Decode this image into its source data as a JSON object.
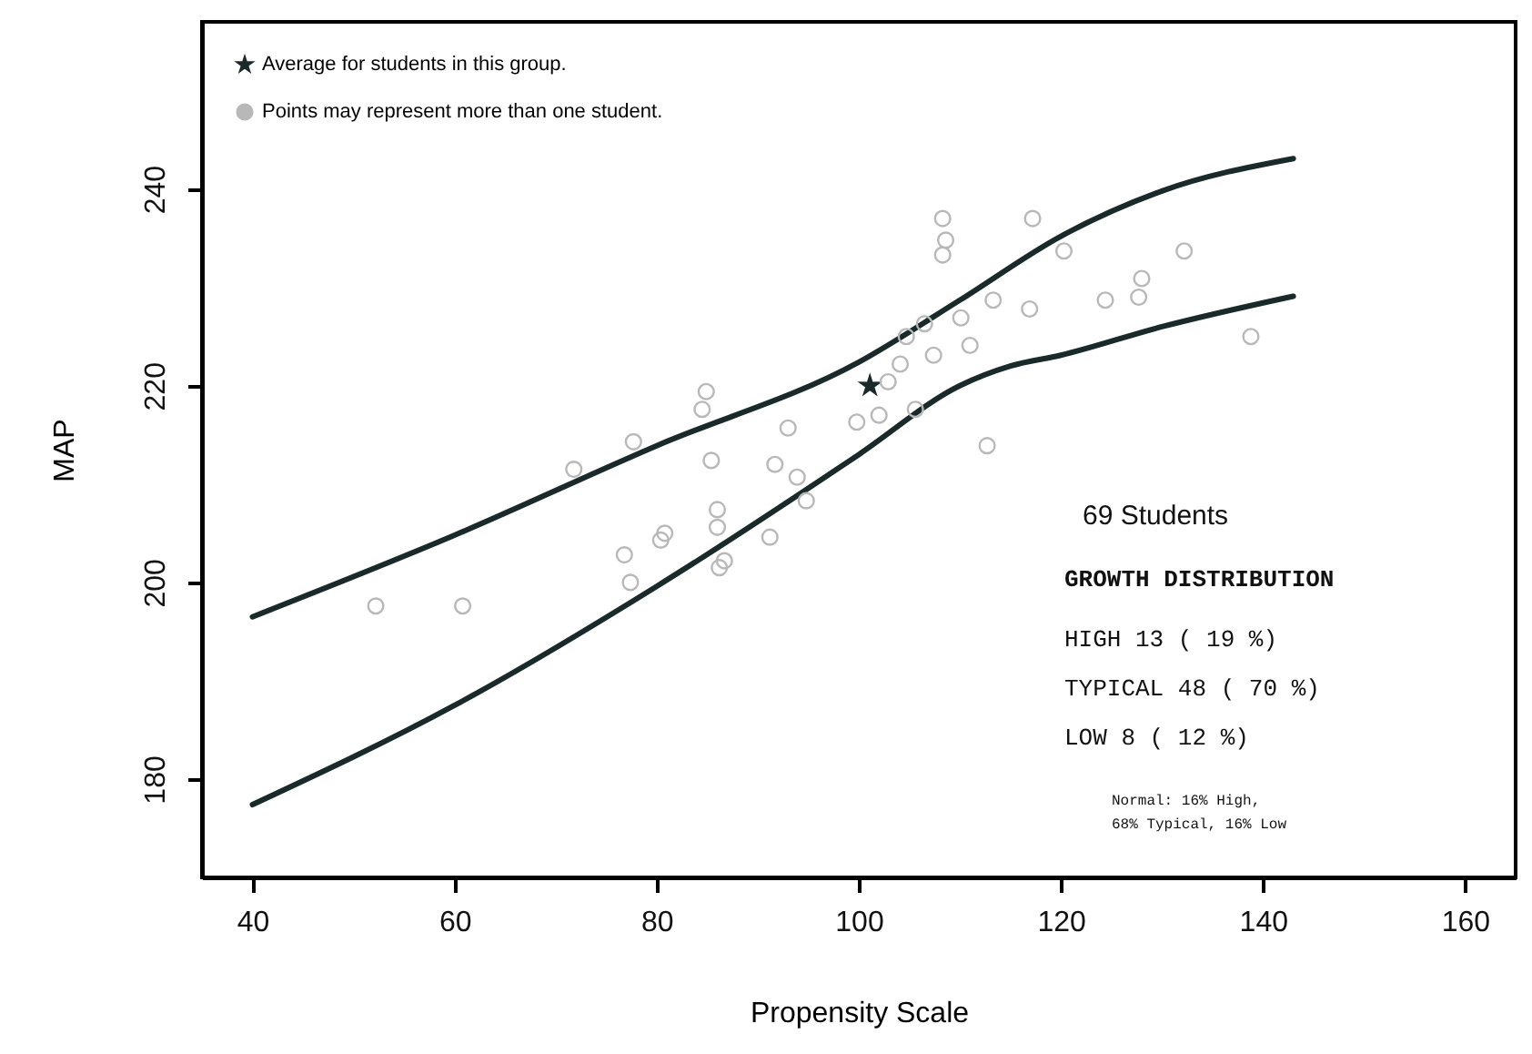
{
  "chart_data": {
    "type": "scatter",
    "xlabel": "Propensity Scale",
    "ylabel": "MAP",
    "xlim": [
      35,
      165
    ],
    "ylim": [
      170,
      257
    ],
    "xticks": [
      40,
      60,
      80,
      100,
      120,
      140,
      160
    ],
    "yticks": [
      180,
      200,
      220,
      240
    ],
    "grid": false,
    "legend": "top left",
    "series": [
      {
        "name": "Average for students in this group.",
        "marker": "star",
        "color": "#1a2a2a",
        "x": [
          101.1
        ],
        "values": [
          220
        ]
      },
      {
        "name": "Points may represent more than one student.",
        "marker": "circle",
        "color": "#b8b8b8",
        "x": [
          52.2,
          60.8,
          71.8,
          77.7,
          77.4,
          76.8,
          80.4,
          80.8,
          84.9,
          84.5,
          85.4,
          86.0,
          86.0,
          86.2,
          86.7,
          91.2,
          91.7,
          93.0,
          93.9,
          94.8,
          99.8,
          102.0,
          102.9,
          104.1,
          104.7,
          105.6,
          106.5,
          107.4,
          108.3,
          108.3,
          108.6,
          110.1,
          111.0,
          112.7,
          113.3,
          116.9,
          117.2,
          120.3,
          124.4,
          127.7,
          128.0,
          132.2,
          138.8
        ],
        "values": [
          197.6,
          197.6,
          211.5,
          214.3,
          200.0,
          202.8,
          204.3,
          205.0,
          219.4,
          217.6,
          212.4,
          207.4,
          205.6,
          201.5,
          202.2,
          204.6,
          212.0,
          215.7,
          210.7,
          208.3,
          216.3,
          217.0,
          220.4,
          222.2,
          225.0,
          217.6,
          226.3,
          223.1,
          233.3,
          237.0,
          234.8,
          226.9,
          224.1,
          213.9,
          228.7,
          227.8,
          237.0,
          233.7,
          228.7,
          229.0,
          230.9,
          233.7,
          225.0
        ]
      },
      {
        "type": "line",
        "color": "#1a2a2a",
        "x": [
          40,
          60,
          80,
          100,
          110,
          120,
          130,
          143
        ],
        "values": [
          196.5,
          204.8,
          213.9,
          222.4,
          228.7,
          235.2,
          239.8,
          243.1
        ]
      },
      {
        "type": "line",
        "color": "#1a2a2a",
        "x": [
          40,
          60,
          80,
          100,
          110,
          115,
          120,
          130,
          143
        ],
        "values": [
          177.4,
          187.5,
          199.6,
          213.0,
          220.0,
          222.0,
          223.1,
          226.0,
          229.1
        ]
      }
    ],
    "annotations": [
      "69 Students",
      "GROWTH DISTRIBUTION",
      "HIGH 13 ( 19 %)",
      "TYPICAL 48 ( 70 %)",
      "LOW 8 ( 12 %)",
      "Normal: 16% High,",
      "68% Typical, 16% Low"
    ]
  }
}
